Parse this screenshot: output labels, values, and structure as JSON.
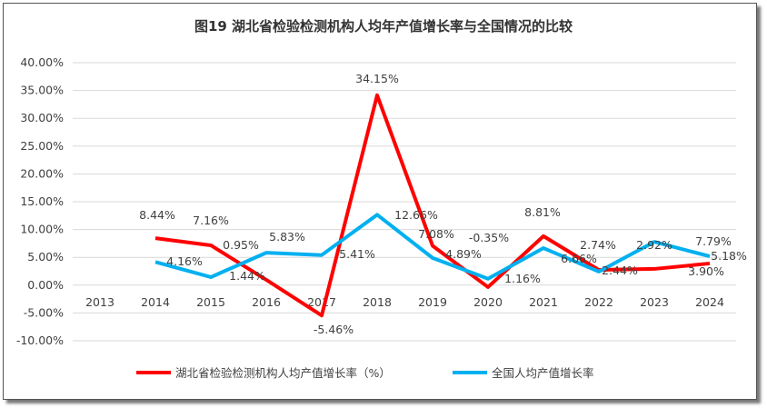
{
  "chart_data": {
    "type": "line",
    "title": "图19  湖北省检验检测机构人均年产值增长率与全国情况的比较",
    "categories": [
      "2013",
      "2014",
      "2015",
      "2016",
      "2017",
      "2018",
      "2019",
      "2020",
      "2021",
      "2022",
      "2023",
      "2024"
    ],
    "yticks": [
      "40.00%",
      "35.00%",
      "30.00%",
      "25.00%",
      "20.00%",
      "15.00%",
      "10.00%",
      "5.00%",
      "0.00%",
      "-5.00%",
      "-10.00%"
    ],
    "ylim": [
      -10,
      40
    ],
    "grid": true,
    "legend_position": "bottom",
    "series": [
      {
        "name": "湖北省检验检测机构人均产值增长率（%）",
        "color": "#ff0000",
        "values": [
          null,
          8.44,
          7.16,
          0.95,
          -5.46,
          34.15,
          7.08,
          -0.35,
          8.81,
          2.74,
          2.92,
          3.9
        ],
        "labels": [
          "",
          "8.44%",
          "7.16%",
          "0.95%",
          "-5.46%",
          "34.15%",
          "7.08%",
          "-0.35%",
          "8.81%",
          "2.74%",
          "2.92%",
          "3.90%"
        ]
      },
      {
        "name": "全国人均产值增长率",
        "color": "#00b0f0",
        "values": [
          null,
          4.16,
          1.44,
          5.83,
          5.41,
          12.66,
          4.89,
          1.16,
          6.66,
          2.44,
          7.79,
          5.18
        ],
        "labels": [
          "",
          "4.16%",
          "1.44%",
          "5.83%",
          "5.41%",
          "12.66%",
          "4.89%",
          "1.16%",
          "6.66%",
          "2.44%",
          "7.79%",
          "5.18%"
        ]
      }
    ]
  }
}
